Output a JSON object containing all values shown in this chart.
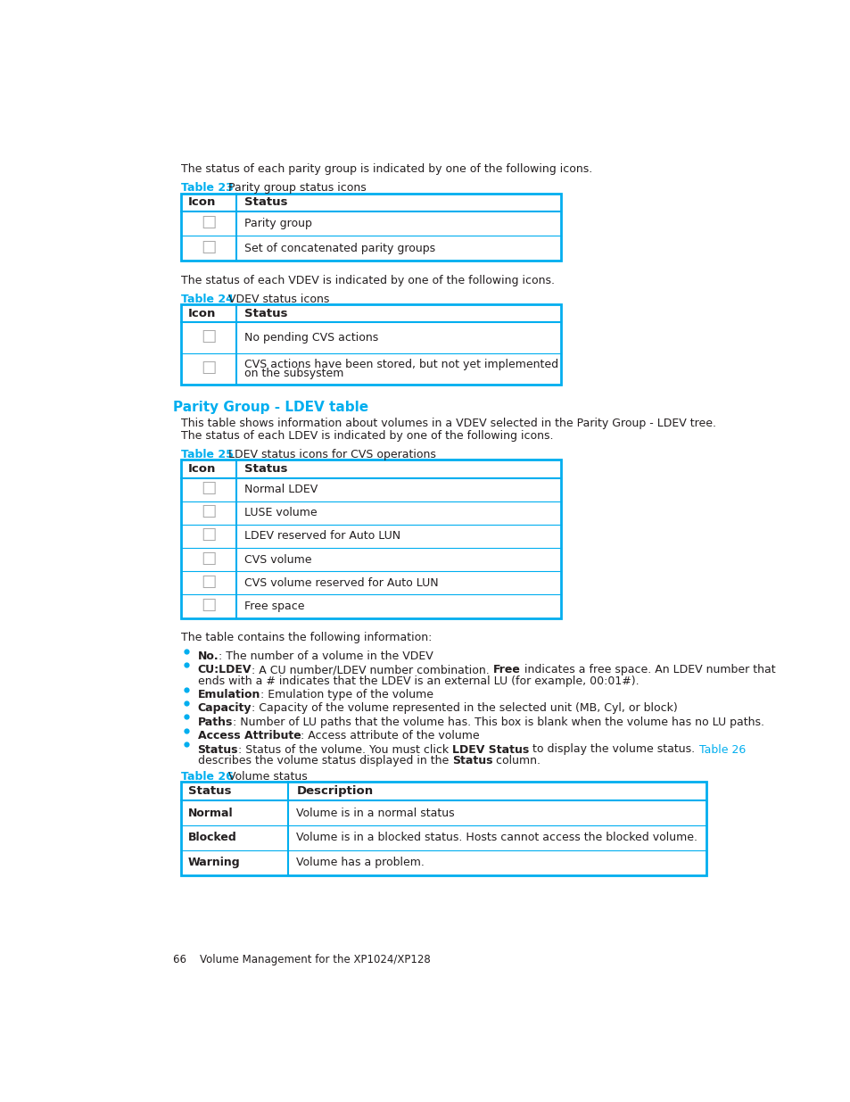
{
  "bg_color": "#ffffff",
  "text_color": "#231f20",
  "cyan_color": "#00aeef",
  "table_border_color": "#00aeef",
  "intro_text1": "The status of each parity group is indicated by one of the following icons.",
  "table23_label": "Table 23",
  "table23_title": "  Parity group status icons",
  "table23_col1_header": "Icon",
  "table23_col2_header": "Status",
  "table23_rows": [
    "Parity group",
    "Set of concatenated parity groups"
  ],
  "intro_text2": "The status of each VDEV is indicated by one of the following icons.",
  "table24_label": "Table 24",
  "table24_title": "  VDEV status icons",
  "table24_col1_header": "Icon",
  "table24_col2_header": "Status",
  "table24_rows": [
    "No pending CVS actions",
    "CVS actions have been stored, but not yet implemented\non the subsystem"
  ],
  "section_heading": "Parity Group - LDEV table",
  "section_text1": "This table shows information about volumes in a VDEV selected in the Parity Group - LDEV tree.",
  "section_text2": "The status of each LDEV is indicated by one of the following icons.",
  "table25_label": "Table 25",
  "table25_title": "  LDEV status icons for CVS operations",
  "table25_col1_header": "Icon",
  "table25_col2_header": "Status",
  "table25_rows": [
    "Normal LDEV",
    "LUSE volume",
    "LDEV reserved for Auto LUN",
    "CVS volume",
    "CVS volume reserved for Auto LUN",
    "Free space"
  ],
  "info_text": "The table contains the following information:",
  "table26_label": "Table 26",
  "table26_title": "  Volume status",
  "table26_col1_header": "Status",
  "table26_col2_header": "Description",
  "table26_rows": [
    [
      "Normal",
      "Volume is in a normal status"
    ],
    [
      "Blocked",
      "Volume is in a blocked status. Hosts cannot access the blocked volume."
    ],
    [
      "Warning",
      "Volume has a problem."
    ]
  ],
  "footer_text": "66    Volume Management for the XP1024/XP128"
}
